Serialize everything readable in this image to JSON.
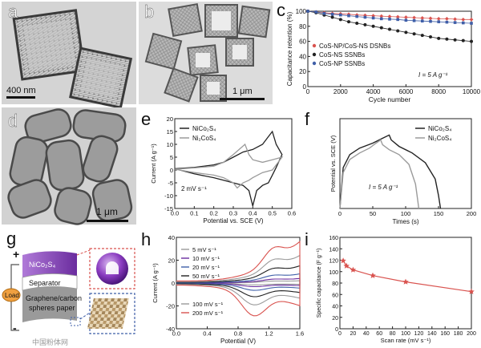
{
  "panels": {
    "a": {
      "label": "a",
      "scale_bar": "400 nm"
    },
    "b": {
      "label": "b",
      "scale_bar": "1 μm"
    },
    "d": {
      "label": "d",
      "scale_bar": "1 μm"
    },
    "g": {
      "label": "g",
      "layer_top": "NiCo₂S₄",
      "layer_separator": "Separator",
      "layer_bottom_1": "Graphene/carbon",
      "layer_bottom_2": "spheres paper",
      "load_label": "Load",
      "plus_sign": "+",
      "minus_sign": "-"
    }
  },
  "watermark": "中国粉体网",
  "colors": {
    "red": "#d9534f",
    "black": "#222222",
    "blue": "#3f5fa8",
    "gray": "#9a9a9a",
    "purple": "#6a2c9e",
    "load_orange": "#f0a040"
  },
  "chart_data": [
    {
      "panel": "c",
      "type": "scatter",
      "ylabel": "Capacitance retention (%)",
      "xlabel": "Cycle number",
      "xlim": [
        0,
        10000
      ],
      "ylim": [
        0,
        100
      ],
      "x_ticks": [
        "0",
        "2000",
        "4000",
        "6000",
        "8000",
        "10000"
      ],
      "y_ticks": [
        "0",
        "20",
        "40",
        "60",
        "80",
        "100"
      ],
      "annotation": "I = 5 A g⁻¹",
      "legend_position": "bottom-left",
      "series": [
        {
          "name": "CoS-NP/CoS-NS DSNBs",
          "color": "red",
          "x": [
            0,
            500,
            1000,
            1500,
            2000,
            2500,
            3000,
            3500,
            4000,
            4500,
            5000,
            5500,
            6000,
            6500,
            7000,
            7500,
            8000,
            8500,
            9000,
            9500,
            10000
          ],
          "y": [
            100,
            99,
            98,
            97,
            96.5,
            96,
            95,
            94.5,
            94,
            93.5,
            93,
            92.5,
            92,
            91.5,
            91,
            90.5,
            90,
            90,
            89.5,
            89,
            89
          ]
        },
        {
          "name": "CoS-NS SSNBs",
          "color": "black",
          "x": [
            0,
            500,
            1000,
            1500,
            2000,
            2500,
            3000,
            3500,
            4000,
            4500,
            5000,
            5500,
            6000,
            6500,
            7000,
            7500,
            8000,
            8500,
            9000,
            9500,
            10000
          ],
          "y": [
            100,
            98,
            95,
            92,
            89,
            86,
            84,
            82,
            80,
            78,
            76,
            74,
            72,
            70,
            68,
            66,
            64,
            63,
            62,
            61,
            60
          ]
        },
        {
          "name": "CoS-NP SSNBs",
          "color": "blue",
          "x": [
            0,
            500,
            1000,
            1500,
            2000,
            2500,
            3000,
            3500,
            4000,
            4500,
            5000,
            5500,
            6000,
            6500,
            7000,
            7500,
            8000,
            8500,
            9000,
            9500,
            10000
          ],
          "y": [
            100,
            99,
            97,
            96,
            95,
            94,
            93,
            92,
            91,
            90,
            89.5,
            89,
            88,
            87.5,
            87,
            86.5,
            86,
            85.5,
            85,
            84.5,
            84
          ]
        }
      ]
    },
    {
      "panel": "e",
      "type": "line",
      "ylabel": "Current (A g⁻¹)",
      "xlabel": "Potential vs. SCE (V)",
      "xlim": [
        0.0,
        0.6
      ],
      "ylim": [
        -15,
        20
      ],
      "x_ticks": [
        "0.0",
        "0.1",
        "0.2",
        "0.3",
        "0.4",
        "0.5",
        "0.6"
      ],
      "y_ticks": [
        "-15",
        "-10",
        "-5",
        "0",
        "5",
        "10",
        "15",
        "20"
      ],
      "annotation": "2 mV s⁻¹",
      "legend_position": "top-left",
      "series": [
        {
          "name": "NiCo₂S₄",
          "color": "black",
          "x": [
            0.0,
            0.1,
            0.2,
            0.25,
            0.3,
            0.35,
            0.4,
            0.45,
            0.48,
            0.5,
            0.52,
            0.55,
            0.52,
            0.5,
            0.48,
            0.45,
            0.42,
            0.4,
            0.38,
            0.35,
            0.3,
            0.25,
            0.2,
            0.1,
            0.0
          ],
          "y": [
            0.5,
            1,
            2,
            3,
            5,
            7,
            8,
            10,
            13,
            15,
            10,
            6,
            1,
            -2,
            -5,
            -6,
            -8,
            -14,
            -8,
            -6,
            -5,
            -4,
            -3,
            -1.5,
            0.5
          ]
        },
        {
          "name": "Ni₂CoS₄",
          "color": "gray",
          "x": [
            0.0,
            0.1,
            0.2,
            0.25,
            0.3,
            0.33,
            0.36,
            0.38,
            0.4,
            0.45,
            0.5,
            0.55,
            0.5,
            0.45,
            0.4,
            0.38,
            0.35,
            0.32,
            0.3,
            0.25,
            0.2,
            0.1,
            0.0
          ],
          "y": [
            0.3,
            0.8,
            1.5,
            3,
            6,
            8,
            10,
            6,
            4,
            3,
            4,
            5,
            0,
            -1,
            -3,
            -4,
            -5,
            -7,
            -5,
            -3,
            -2,
            -1,
            0.3
          ]
        }
      ]
    },
    {
      "panel": "f",
      "type": "line",
      "ylabel": "Potential vs. SCE (V)",
      "xlabel": "Times (s)",
      "xlim": [
        0,
        200
      ],
      "x_ticks": [
        "0",
        "50",
        "100",
        "150",
        "200"
      ],
      "annotation": "I = 5 A g⁻¹",
      "legend_position": "top-right",
      "series": [
        {
          "name": "NiCo₂S₄",
          "color": "black",
          "x": [
            0,
            5,
            15,
            30,
            50,
            65,
            75,
            78,
            90,
            110,
            130,
            145,
            150,
            153
          ],
          "y": [
            0.0,
            0.25,
            0.33,
            0.37,
            0.4,
            0.43,
            0.45,
            0.42,
            0.38,
            0.34,
            0.28,
            0.18,
            0.08,
            0.0
          ]
        },
        {
          "name": "Ni₂CoS₄",
          "color": "gray",
          "x": [
            0,
            5,
            15,
            30,
            45,
            55,
            62,
            65,
            75,
            90,
            105,
            115,
            118,
            120
          ],
          "y": [
            0.0,
            0.22,
            0.3,
            0.34,
            0.37,
            0.4,
            0.42,
            0.39,
            0.36,
            0.33,
            0.27,
            0.15,
            0.06,
            0.0
          ]
        }
      ]
    },
    {
      "panel": "h",
      "type": "line",
      "ylabel": "Current (A g⁻¹)",
      "xlabel": "Potential (V)",
      "xlim": [
        0.0,
        1.6
      ],
      "ylim": [
        -40,
        40
      ],
      "x_ticks": [
        "0.0",
        "0.4",
        "0.8",
        "1.2",
        "1.6"
      ],
      "y_ticks": [
        "-40",
        "-20",
        "0",
        "20",
        "40"
      ],
      "legend_position": "top-left and bottom-left",
      "series": [
        {
          "name": "5 mV s⁻¹",
          "color": "gray",
          "amplitude": 2
        },
        {
          "name": "10 mV s⁻¹",
          "color": "purple",
          "amplitude": 4
        },
        {
          "name": "20 mV s⁻¹",
          "color": "blue",
          "amplitude": 8
        },
        {
          "name": "50 mV s⁻¹",
          "color": "black",
          "amplitude": 15
        },
        {
          "name": "100 mV s⁻¹",
          "color": "gray",
          "amplitude": 24
        },
        {
          "name": "200 mV s⁻¹",
          "color": "red",
          "amplitude": 36
        }
      ]
    },
    {
      "panel": "i",
      "type": "line",
      "ylabel": "Specific capacitance (F g⁻¹)",
      "xlabel": "Scan rate (mV s⁻¹)",
      "xlim": [
        0,
        200
      ],
      "ylim": [
        0,
        160
      ],
      "x_ticks": [
        "0",
        "20",
        "40",
        "60",
        "80",
        "100",
        "120",
        "140",
        "160",
        "180",
        "200"
      ],
      "y_ticks": [
        "0",
        "20",
        "40",
        "60",
        "80",
        "100",
        "120",
        "140",
        "160"
      ],
      "series": [
        {
          "name": "",
          "color": "red",
          "x": [
            5,
            10,
            20,
            50,
            100,
            200
          ],
          "y": [
            119,
            110,
            103,
            93,
            82,
            65
          ]
        }
      ]
    }
  ]
}
